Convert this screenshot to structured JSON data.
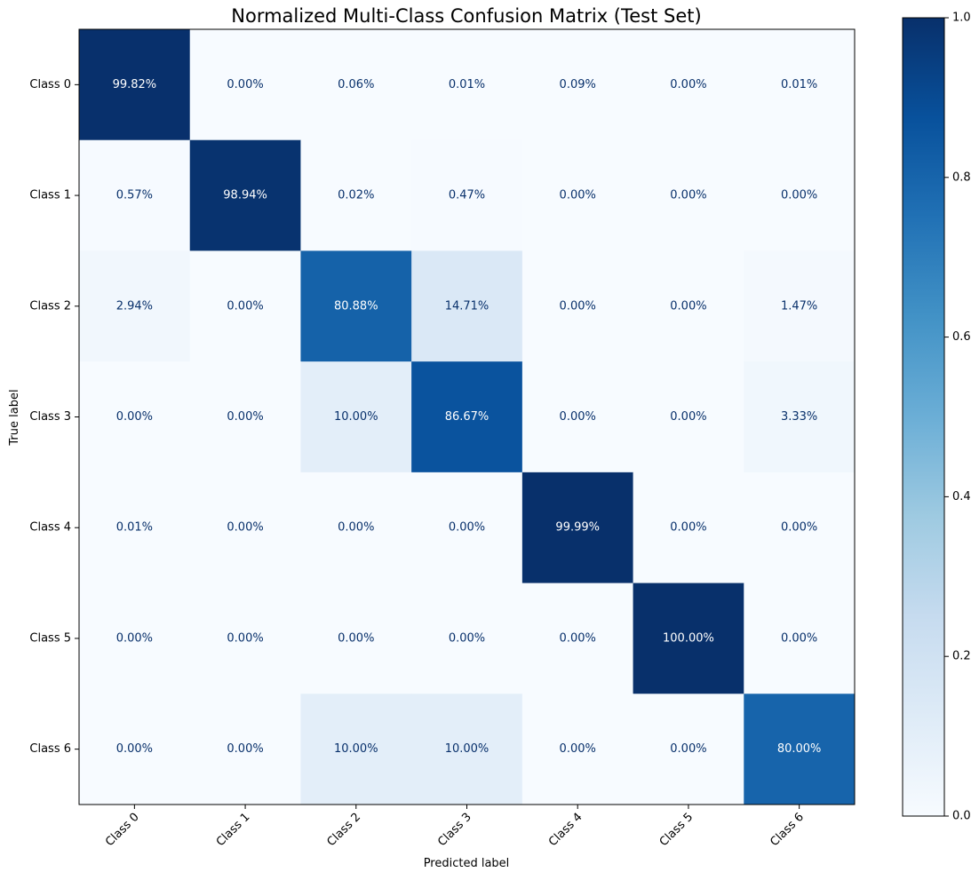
{
  "chart_data": {
    "type": "heatmap",
    "title": "Normalized Multi-Class Confusion Matrix (Test Set)",
    "xlabel": "Predicted label",
    "ylabel": "True label",
    "x_categories": [
      "Class 0",
      "Class 1",
      "Class 2",
      "Class 3",
      "Class 4",
      "Class 5",
      "Class 6"
    ],
    "y_categories": [
      "Class 0",
      "Class 1",
      "Class 2",
      "Class 3",
      "Class 4",
      "Class 5",
      "Class 6"
    ],
    "values": [
      [
        0.9982,
        0.0,
        0.0006,
        0.0001,
        0.0009,
        0.0,
        0.0001
      ],
      [
        0.0057,
        0.9894,
        0.0002,
        0.0047,
        0.0,
        0.0,
        0.0
      ],
      [
        0.0294,
        0.0,
        0.8088,
        0.1471,
        0.0,
        0.0,
        0.0147
      ],
      [
        0.0,
        0.0,
        0.1,
        0.8667,
        0.0,
        0.0,
        0.0333
      ],
      [
        0.0001,
        0.0,
        0.0,
        0.0,
        0.9999,
        0.0,
        0.0
      ],
      [
        0.0,
        0.0,
        0.0,
        0.0,
        0.0,
        1.0,
        0.0
      ],
      [
        0.0,
        0.0,
        0.1,
        0.1,
        0.0,
        0.0,
        0.8
      ]
    ],
    "cell_labels": [
      [
        "99.82%",
        "0.00%",
        "0.06%",
        "0.01%",
        "0.09%",
        "0.00%",
        "0.01%"
      ],
      [
        "0.57%",
        "98.94%",
        "0.02%",
        "0.47%",
        "0.00%",
        "0.00%",
        "0.00%"
      ],
      [
        "2.94%",
        "0.00%",
        "80.88%",
        "14.71%",
        "0.00%",
        "0.00%",
        "1.47%"
      ],
      [
        "0.00%",
        "0.00%",
        "10.00%",
        "86.67%",
        "0.00%",
        "0.00%",
        "3.33%"
      ],
      [
        "0.01%",
        "0.00%",
        "0.00%",
        "0.00%",
        "99.99%",
        "0.00%",
        "0.00%"
      ],
      [
        "0.00%",
        "0.00%",
        "0.00%",
        "0.00%",
        "0.00%",
        "100.00%",
        "0.00%"
      ],
      [
        "0.00%",
        "0.00%",
        "10.00%",
        "10.00%",
        "0.00%",
        "0.00%",
        "80.00%"
      ]
    ],
    "colormap": "Blues",
    "colorbar": {
      "range": [
        0.0,
        1.0
      ],
      "ticks": [
        0.0,
        0.2,
        0.4,
        0.6,
        0.8,
        1.0
      ],
      "tick_labels": [
        "0.0",
        "0.2",
        "0.4",
        "0.6",
        "0.8",
        "1.0"
      ]
    },
    "colors": {
      "light_text": "#ffffff",
      "dark_text": "#08306b",
      "axis": "#000000"
    }
  }
}
